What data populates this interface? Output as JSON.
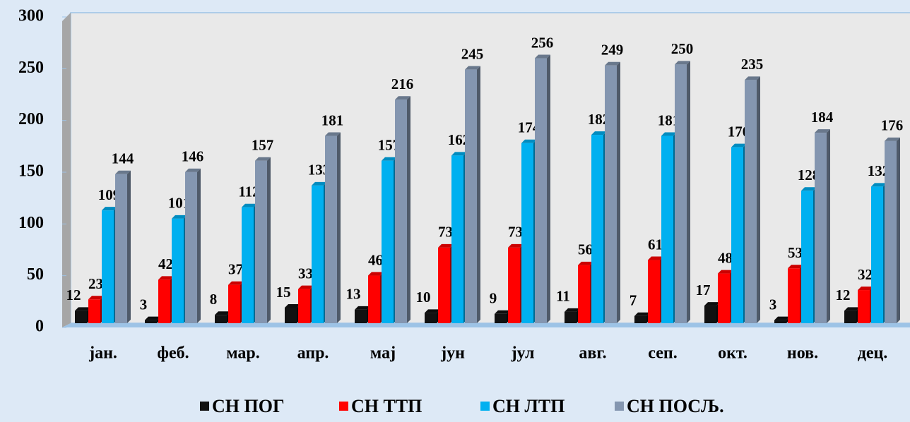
{
  "chart_data": {
    "type": "bar",
    "categories": [
      "јан.",
      "феб.",
      "мар.",
      "апр.",
      "мај",
      "јун",
      "јул",
      "авг.",
      "сеп.",
      "окт.",
      "нов.",
      "дец."
    ],
    "series": [
      {
        "name": "СН ПОГ",
        "color": "#111111",
        "values": [
          12,
          3,
          8,
          15,
          13,
          10,
          9,
          11,
          7,
          17,
          3,
          12
        ]
      },
      {
        "name": "СН ТТП",
        "color": "#ff0000",
        "values": [
          23,
          42,
          37,
          33,
          46,
          73,
          73,
          56,
          61,
          48,
          53,
          32
        ]
      },
      {
        "name": "СН ЛТП",
        "color": "#00b0f0",
        "values": [
          109,
          101,
          112,
          133,
          157,
          162,
          174,
          182,
          181,
          170,
          128,
          132
        ]
      },
      {
        "name": "СН ПОСЉ.",
        "color": "#8496b0",
        "values": [
          144,
          146,
          157,
          181,
          216,
          245,
          256,
          249,
          250,
          235,
          184,
          176
        ]
      }
    ],
    "ylim": [
      0,
      300
    ],
    "yticks": [
      0,
      50,
      100,
      150,
      200,
      250,
      300
    ],
    "grid": false,
    "legend": "bottom"
  }
}
